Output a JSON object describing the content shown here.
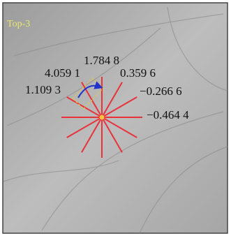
{
  "image": {
    "label": "Top-3",
    "values": [
      {
        "text": "1.784 8"
      },
      {
        "text": "4.059 1"
      },
      {
        "text": "0.359 6"
      },
      {
        "text": "1.109 3"
      },
      {
        "text": "−0.266 6"
      },
      {
        "text": "−0.464 4"
      }
    ]
  }
}
